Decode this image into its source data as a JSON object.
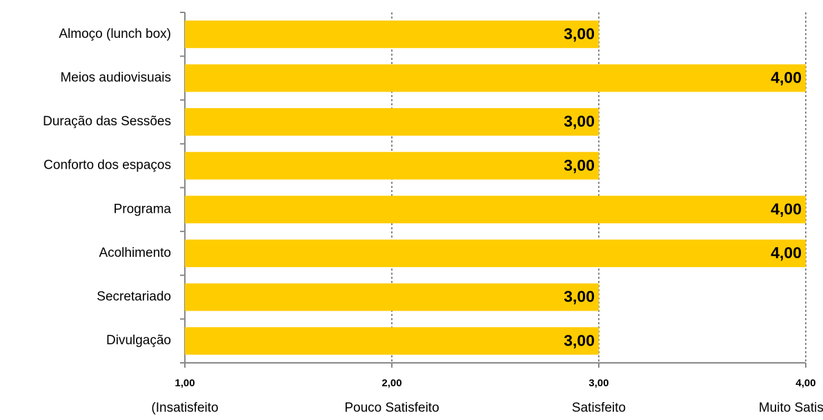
{
  "chart_data": {
    "type": "bar",
    "orientation": "horizontal",
    "categories": [
      "Almoço (lunch box)",
      "Meios audiovisuais",
      "Duração das Sessões",
      "Conforto dos espaços",
      "Programa",
      "Acolhimento",
      "Secretariado",
      "Divulgação"
    ],
    "values": [
      3,
      4,
      3,
      3,
      4,
      4,
      3,
      3
    ],
    "value_labels": [
      "3,00",
      "4,00",
      "3,00",
      "3,00",
      "4,00",
      "4,00",
      "3,00",
      "3,00"
    ],
    "color": "#ffcc00",
    "xlim": [
      1,
      4
    ],
    "xticks": [
      {
        "value": 1,
        "label": "1,00"
      },
      {
        "value": 2,
        "label": "2,00"
      },
      {
        "value": 3,
        "label": "3,00"
      },
      {
        "value": 4,
        "label": "4,00"
      }
    ],
    "xtick_sublabels": [
      "(Insatisfeito",
      "Pouco Satisfeito",
      "Satisfeito",
      "Muito Satisfeito)"
    ],
    "grid": true
  }
}
